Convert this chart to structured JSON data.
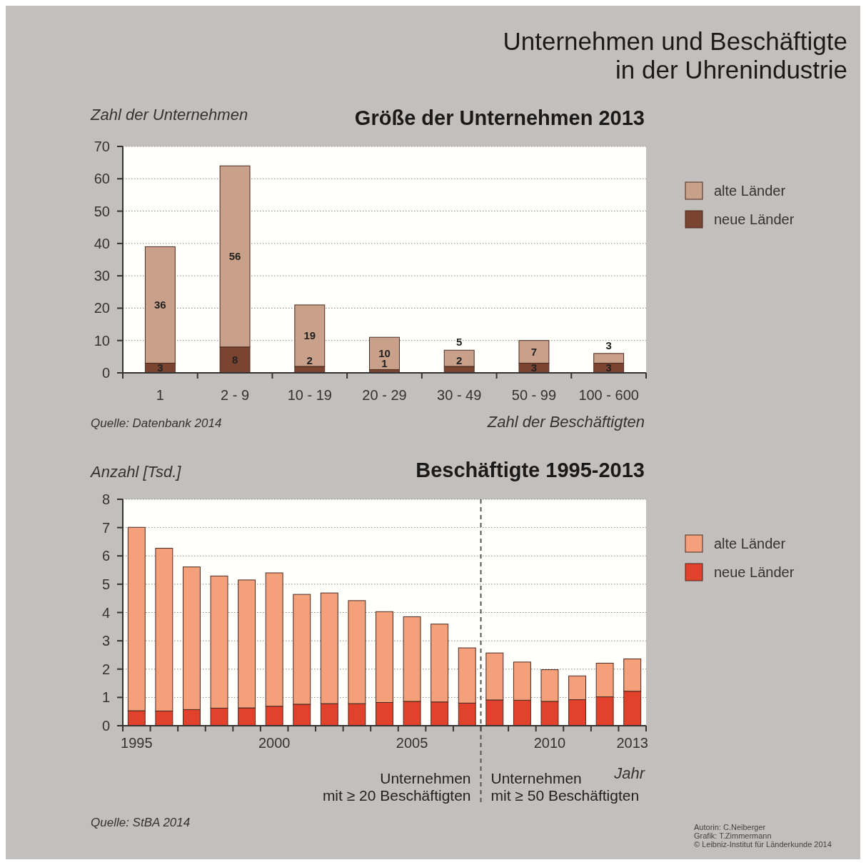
{
  "chart_data": [
    {
      "type": "bar",
      "title": "Unternehmen und Beschäftigte\nin der Uhrenindustrie",
      "subtitle": "Größe der Unternehmen 2013",
      "ylabel": "Zahl der Unternehmen",
      "xlabel": "Zahl der Beschäftigten",
      "categories": [
        "1",
        "2 - 9",
        "10 - 19",
        "20 - 29",
        "30 - 49",
        "50 - 99",
        "100 - 600"
      ],
      "series": [
        {
          "name": "neue Länder",
          "color": "#7b4430",
          "values": [
            3,
            8,
            2,
            1,
            2,
            3,
            3
          ]
        },
        {
          "name": "alte Länder",
          "color": "#c9a08a",
          "values": [
            36,
            56,
            19,
            10,
            5,
            7,
            3
          ]
        }
      ],
      "stacked": true,
      "data_labels": true,
      "ylim": [
        0,
        70
      ],
      "yticks": [
        0,
        10,
        20,
        30,
        40,
        50,
        60,
        70
      ],
      "grid": "y",
      "legend": "top right",
      "annotations": [
        "Quelle: Datenbank 2014"
      ]
    },
    {
      "type": "bar",
      "title": "Beschäftigte 1995-2013",
      "ylabel": "Anzahl [Tsd.]",
      "xlabel": "Jahr",
      "x": [
        1995,
        1996,
        1997,
        1998,
        1999,
        2000,
        2001,
        2002,
        2003,
        2004,
        2005,
        2006,
        2007,
        2008,
        2009,
        2010,
        2011,
        2012,
        2013
      ],
      "series": [
        {
          "name": "neue Länder",
          "color": "#e2412b",
          "values": [
            0.53,
            0.52,
            0.57,
            0.62,
            0.63,
            0.69,
            0.76,
            0.78,
            0.78,
            0.82,
            0.86,
            0.84,
            0.8,
            0.91,
            0.9,
            0.86,
            0.92,
            1.02,
            1.22
          ]
        },
        {
          "name": "alte Länder",
          "color": "#f4a07b",
          "values": [
            6.48,
            5.75,
            5.04,
            4.67,
            4.52,
            4.71,
            3.88,
            3.91,
            3.64,
            3.21,
            2.99,
            2.75,
            1.95,
            1.66,
            1.35,
            1.12,
            0.84,
            1.19,
            1.14
          ]
        }
      ],
      "stacked": true,
      "xlim": [
        1994.5,
        2013.5
      ],
      "xticks": [
        1995,
        2000,
        2005,
        2010,
        2013
      ],
      "ylim": [
        0,
        8
      ],
      "yticks": [
        0,
        1,
        2,
        3,
        4,
        5,
        6,
        7,
        8
      ],
      "grid": "y",
      "legend": "top right",
      "ref_lines": [
        {
          "axis": "x",
          "value": 2007.5,
          "line_style": "dashed",
          "color": "#555555"
        }
      ],
      "annotations": [
        "Unternehmen\nmit ≥ 20 Beschäftigten",
        "Unternehmen\nmit ≥ 50 Beschäftigten",
        "Quelle: StBA 2014",
        "Autorin: C.Neiberger\nGrafik: T.Zimmermann\n© Leibniz-Institut für Länderkunde 2014"
      ]
    }
  ]
}
